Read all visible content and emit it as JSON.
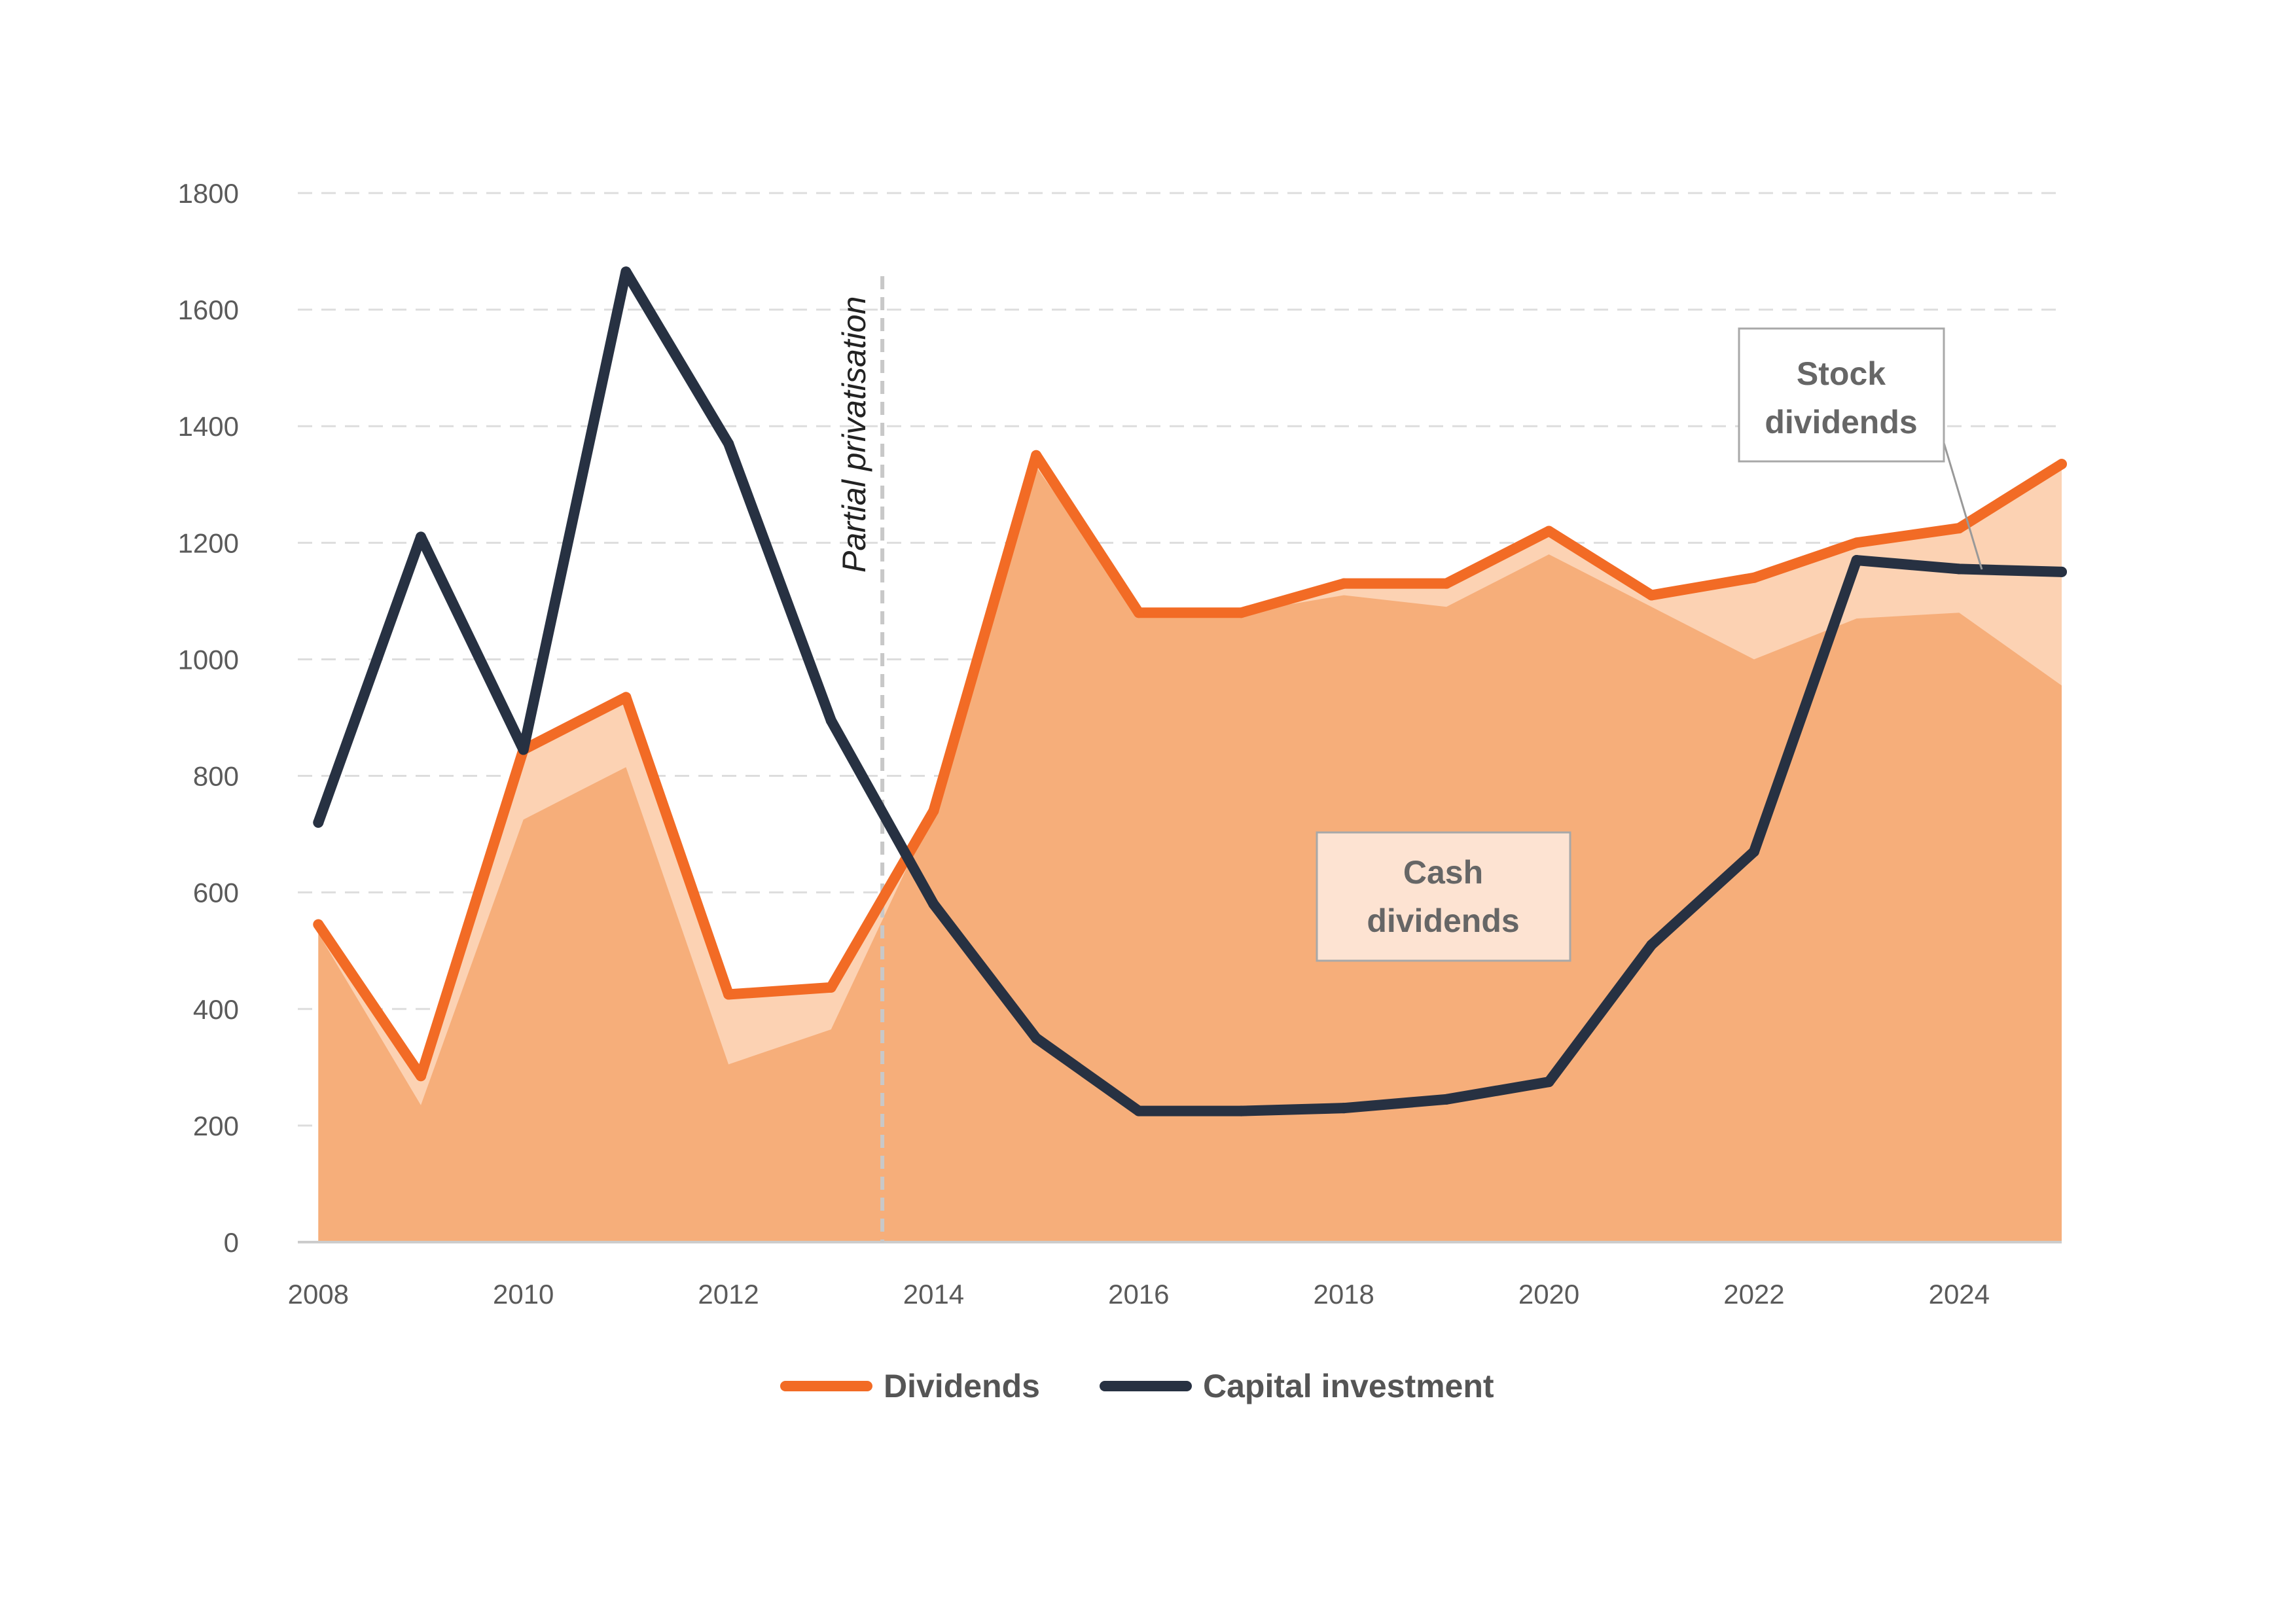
{
  "chart_data": {
    "type": "area",
    "title": "",
    "xlabel": "",
    "ylabel": "",
    "x": [
      2008,
      2009,
      2010,
      2011,
      2012,
      2013,
      2014,
      2015,
      2016,
      2017,
      2018,
      2019,
      2020,
      2021,
      2022,
      2023,
      2024,
      2025
    ],
    "xlim": [
      2007.8,
      2025
    ],
    "ylim": [
      0,
      1800
    ],
    "x_ticks": [
      "2008",
      "2010",
      "2012",
      "2014",
      "2016",
      "2018",
      "2020",
      "2022",
      "2024"
    ],
    "y_ticks": [
      "0",
      "200",
      "400",
      "600",
      "800",
      "1000",
      "1200",
      "1400",
      "1600",
      "1800"
    ],
    "grid": true,
    "series": [
      {
        "name": "Cash dividends",
        "kind": "area",
        "color": "#f6ae7a",
        "values": [
          530,
          235,
          725,
          815,
          305,
          365,
          740,
          1330,
          1080,
          1080,
          1110,
          1090,
          1180,
          1090,
          1000,
          1070,
          1080,
          955
        ]
      },
      {
        "name": "Stock dividends",
        "kind": "area",
        "color": "#fcd2b3",
        "values": [
          15,
          50,
          125,
          120,
          120,
          72,
          0,
          20,
          0,
          0,
          20,
          40,
          40,
          20,
          140,
          130,
          145,
          380
        ]
      },
      {
        "name": "Dividends",
        "kind": "line",
        "color": "#f26b25",
        "values": [
          545,
          285,
          845,
          935,
          425,
          437,
          740,
          1350,
          1080,
          1080,
          1130,
          1130,
          1220,
          1110,
          1140,
          1200,
          1225,
          1335
        ]
      },
      {
        "name": "Capital investment",
        "kind": "line",
        "color": "#273142",
        "values": [
          720,
          1210,
          845,
          1665,
          1370,
          895,
          580,
          350,
          225,
          225,
          230,
          245,
          275,
          510,
          670,
          1170,
          1155,
          1150
        ]
      }
    ],
    "annotations": [
      {
        "text": "Partial privatisation",
        "type": "vertical-line",
        "x": 2013.5
      },
      {
        "text": "Cash dividends",
        "type": "label-box",
        "series": "Cash dividends"
      },
      {
        "text": "Stock dividends",
        "type": "callout-box",
        "series": "Stock dividends"
      }
    ],
    "legend": {
      "position": "bottom-center",
      "items": [
        {
          "label": "Dividends",
          "color": "#f26b25"
        },
        {
          "label": "Capital investment",
          "color": "#273142"
        }
      ]
    }
  },
  "labels": {
    "vline": "Partial privatisation",
    "cash": [
      "Cash",
      "dividends"
    ],
    "stock": [
      "Stock",
      "dividends"
    ],
    "legend_dividends": "Dividends",
    "legend_capex": "Capital investment"
  }
}
